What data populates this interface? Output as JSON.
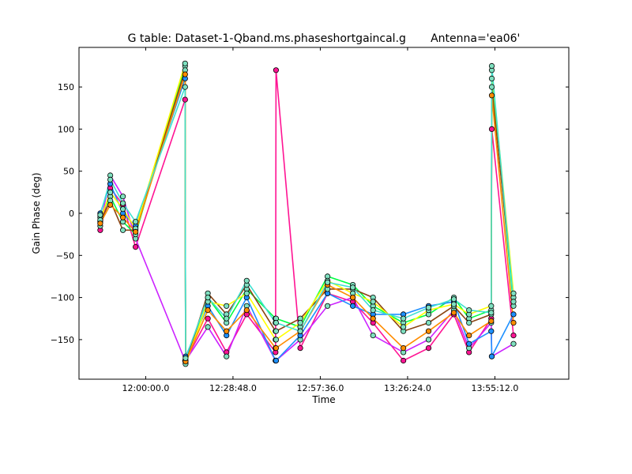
{
  "chart_data": {
    "type": "line",
    "title": "G table: Dataset-1-Qband.ms.phaseshortgaincal.g       Antenna='ea06'",
    "xlabel": "Time",
    "ylabel": "Gain Phase (deg)",
    "x_ticks": [
      "12:00:00.0",
      "12:28:48.0",
      "12:57:36.0",
      "13:26:24.0",
      "13:55:12.0"
    ],
    "x_tick_values_sec": [
      43200,
      44928,
      46656,
      48384,
      50112
    ],
    "xlim_sec": [
      41880,
      51575
    ],
    "y_ticks": [
      150,
      100,
      50,
      0,
      -50,
      -100,
      -150
    ],
    "ylim": [
      -197,
      197
    ],
    "marker": "circle",
    "marker_color": "#7fe0c0",
    "grid": false,
    "legend": "none",
    "series": [
      {
        "color": "#ff1493",
        "x_sec": [
          42300,
          42500,
          42750,
          43000,
          43980,
          43990,
          44430,
          44800,
          45200,
          45770,
          45780,
          46260,
          46800,
          47300,
          47700,
          48300,
          48800,
          49300,
          49600,
          50040,
          50050,
          50480
        ],
        "y": [
          -20,
          30,
          10,
          -40,
          135,
          -175,
          -125,
          -165,
          -120,
          -165,
          170,
          -160,
          -95,
          -105,
          -130,
          -175,
          -160,
          -120,
          -165,
          -125,
          100,
          -145
        ]
      },
      {
        "color": "#cc22ff",
        "x_sec": [
          42300,
          42500,
          42750,
          43000,
          43980,
          43990,
          44430,
          44800,
          45200,
          45770,
          45780,
          46260,
          46800,
          47300,
          47700,
          48300,
          48800,
          49300,
          49600,
          50040,
          50050,
          50480
        ],
        "y": [
          -15,
          45,
          20,
          -30,
          -175,
          -175,
          -135,
          -170,
          -110,
          -175,
          -175,
          -150,
          -110,
          -100,
          -145,
          -165,
          -150,
          -115,
          -160,
          -130,
          -170,
          -155
        ]
      },
      {
        "color": "#00ff44",
        "x_sec": [
          42300,
          42500,
          42750,
          43000,
          43980,
          43990,
          44430,
          44800,
          45200,
          45770,
          45780,
          46260,
          46800,
          47300,
          47700,
          48300,
          48800,
          49300,
          49600,
          50040,
          50050,
          50480
        ],
        "y": [
          -5,
          20,
          -10,
          -25,
          175,
          -175,
          -100,
          -130,
          -90,
          -125,
          -125,
          -135,
          -75,
          -85,
          -110,
          -130,
          -120,
          -100,
          -125,
          -115,
          160,
          -110
        ]
      },
      {
        "color": "#1e90ff",
        "x_sec": [
          42300,
          42500,
          42750,
          43000,
          43980,
          43990,
          44430,
          44800,
          45200,
          45770,
          45780,
          46260,
          46800,
          47300,
          47700,
          48300,
          48800,
          49300,
          49600,
          50040,
          50050,
          50480
        ],
        "y": [
          0,
          35,
          0,
          -15,
          160,
          -170,
          -110,
          -145,
          -100,
          -175,
          -175,
          -145,
          -95,
          -110,
          -120,
          -120,
          -110,
          -105,
          -155,
          -140,
          -170,
          -120
        ]
      },
      {
        "color": "#8b4513",
        "x_sec": [
          42300,
          42500,
          42750,
          43000,
          43980,
          43990,
          44430,
          44800,
          45200,
          45770,
          45780,
          46260,
          46800,
          47300,
          47700,
          48300,
          48800,
          49300,
          49600,
          50040,
          50050,
          50480
        ],
        "y": [
          -10,
          15,
          -20,
          -20,
          170,
          -178,
          -95,
          -120,
          -85,
          -140,
          -140,
          -125,
          -90,
          -90,
          -100,
          -140,
          -130,
          -110,
          -130,
          -120,
          150,
          -100
        ]
      },
      {
        "color": "#ffff00",
        "x_sec": [
          42300,
          42500,
          42750,
          43000,
          43980,
          43990,
          44430,
          44800,
          45200,
          45770,
          45780,
          46260,
          46800,
          47300,
          47700,
          48300,
          48800,
          49300,
          49600,
          50040,
          50050,
          50480
        ],
        "y": [
          -8,
          25,
          5,
          -18,
          178,
          -179,
          -105,
          -110,
          -95,
          -150,
          -150,
          -130,
          -80,
          -95,
          -105,
          -135,
          -115,
          -108,
          -120,
          -110,
          170,
          -95
        ]
      },
      {
        "color": "#ff8c00",
        "x_sec": [
          42300,
          42500,
          42750,
          43000,
          43980,
          43990,
          44430,
          44800,
          45200,
          45770,
          45780,
          46260,
          46800,
          47300,
          47700,
          48300,
          48800,
          49300,
          49600,
          50040,
          50050,
          50480
        ],
        "y": [
          -12,
          10,
          -5,
          -22,
          165,
          -176,
          -115,
          -140,
          -115,
          -160,
          -160,
          -140,
          -85,
          -100,
          -125,
          -160,
          -140,
          -118,
          -145,
          -128,
          140,
          -130
        ]
      },
      {
        "color": "#40e0d0",
        "x_sec": [
          42300,
          42500,
          42750,
          43000,
          43980,
          43990,
          44430,
          44800,
          45200,
          45770,
          45780,
          46260,
          46800,
          47300,
          47700,
          48300,
          48800,
          49300,
          49600,
          50040,
          50050,
          50480
        ],
        "y": [
          -2,
          40,
          12,
          -10,
          150,
          -172,
          -100,
          -125,
          -80,
          -130,
          -130,
          -140,
          -82,
          -88,
          -115,
          -125,
          -112,
          -102,
          -115,
          -118,
          175,
          -105
        ]
      }
    ]
  }
}
